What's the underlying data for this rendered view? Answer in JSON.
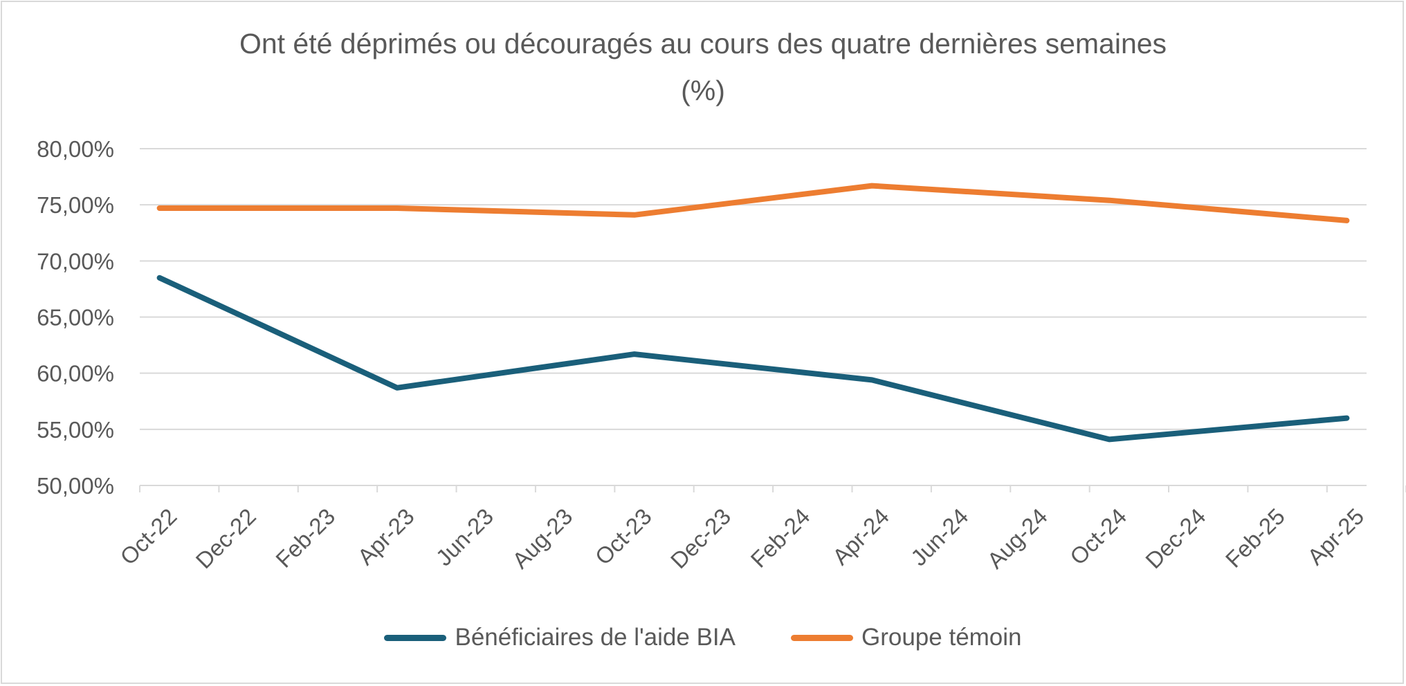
{
  "chart_data": {
    "type": "line",
    "title": "Ont été déprimés ou découragés au cours des quatre dernières semaines",
    "subtitle": "(%)",
    "categories": [
      "Oct-22",
      "Dec-22",
      "Feb-23",
      "Apr-23",
      "Jun-23",
      "Aug-23",
      "Oct-23",
      "Dec-23",
      "Feb-24",
      "Apr-24",
      "Jun-24",
      "Aug-24",
      "Oct-24",
      "Dec-24",
      "Feb-25",
      "Apr-25"
    ],
    "x_numeric": [
      0,
      2,
      4,
      6,
      8,
      10,
      12,
      14,
      16,
      18,
      20,
      22,
      24,
      26,
      28,
      30
    ],
    "y_ticks": [
      "50,00%",
      "55,00%",
      "60,00%",
      "65,00%",
      "70,00%",
      "75,00%",
      "80,00%"
    ],
    "ylim": [
      50,
      80
    ],
    "series": [
      {
        "name": "Bénéficiaires de l'aide BIA",
        "color": "#1a5f7a",
        "x": [
          0,
          6,
          12,
          18,
          24,
          30
        ],
        "values": [
          68.5,
          58.7,
          61.7,
          59.4,
          54.1,
          56.0
        ]
      },
      {
        "name": "Groupe témoin",
        "color": "#ed7d31",
        "x": [
          0,
          6,
          12,
          18,
          24,
          30
        ],
        "values": [
          74.7,
          74.7,
          74.1,
          76.7,
          75.4,
          73.6
        ]
      }
    ],
    "legend_position": "bottom",
    "grid": true
  }
}
